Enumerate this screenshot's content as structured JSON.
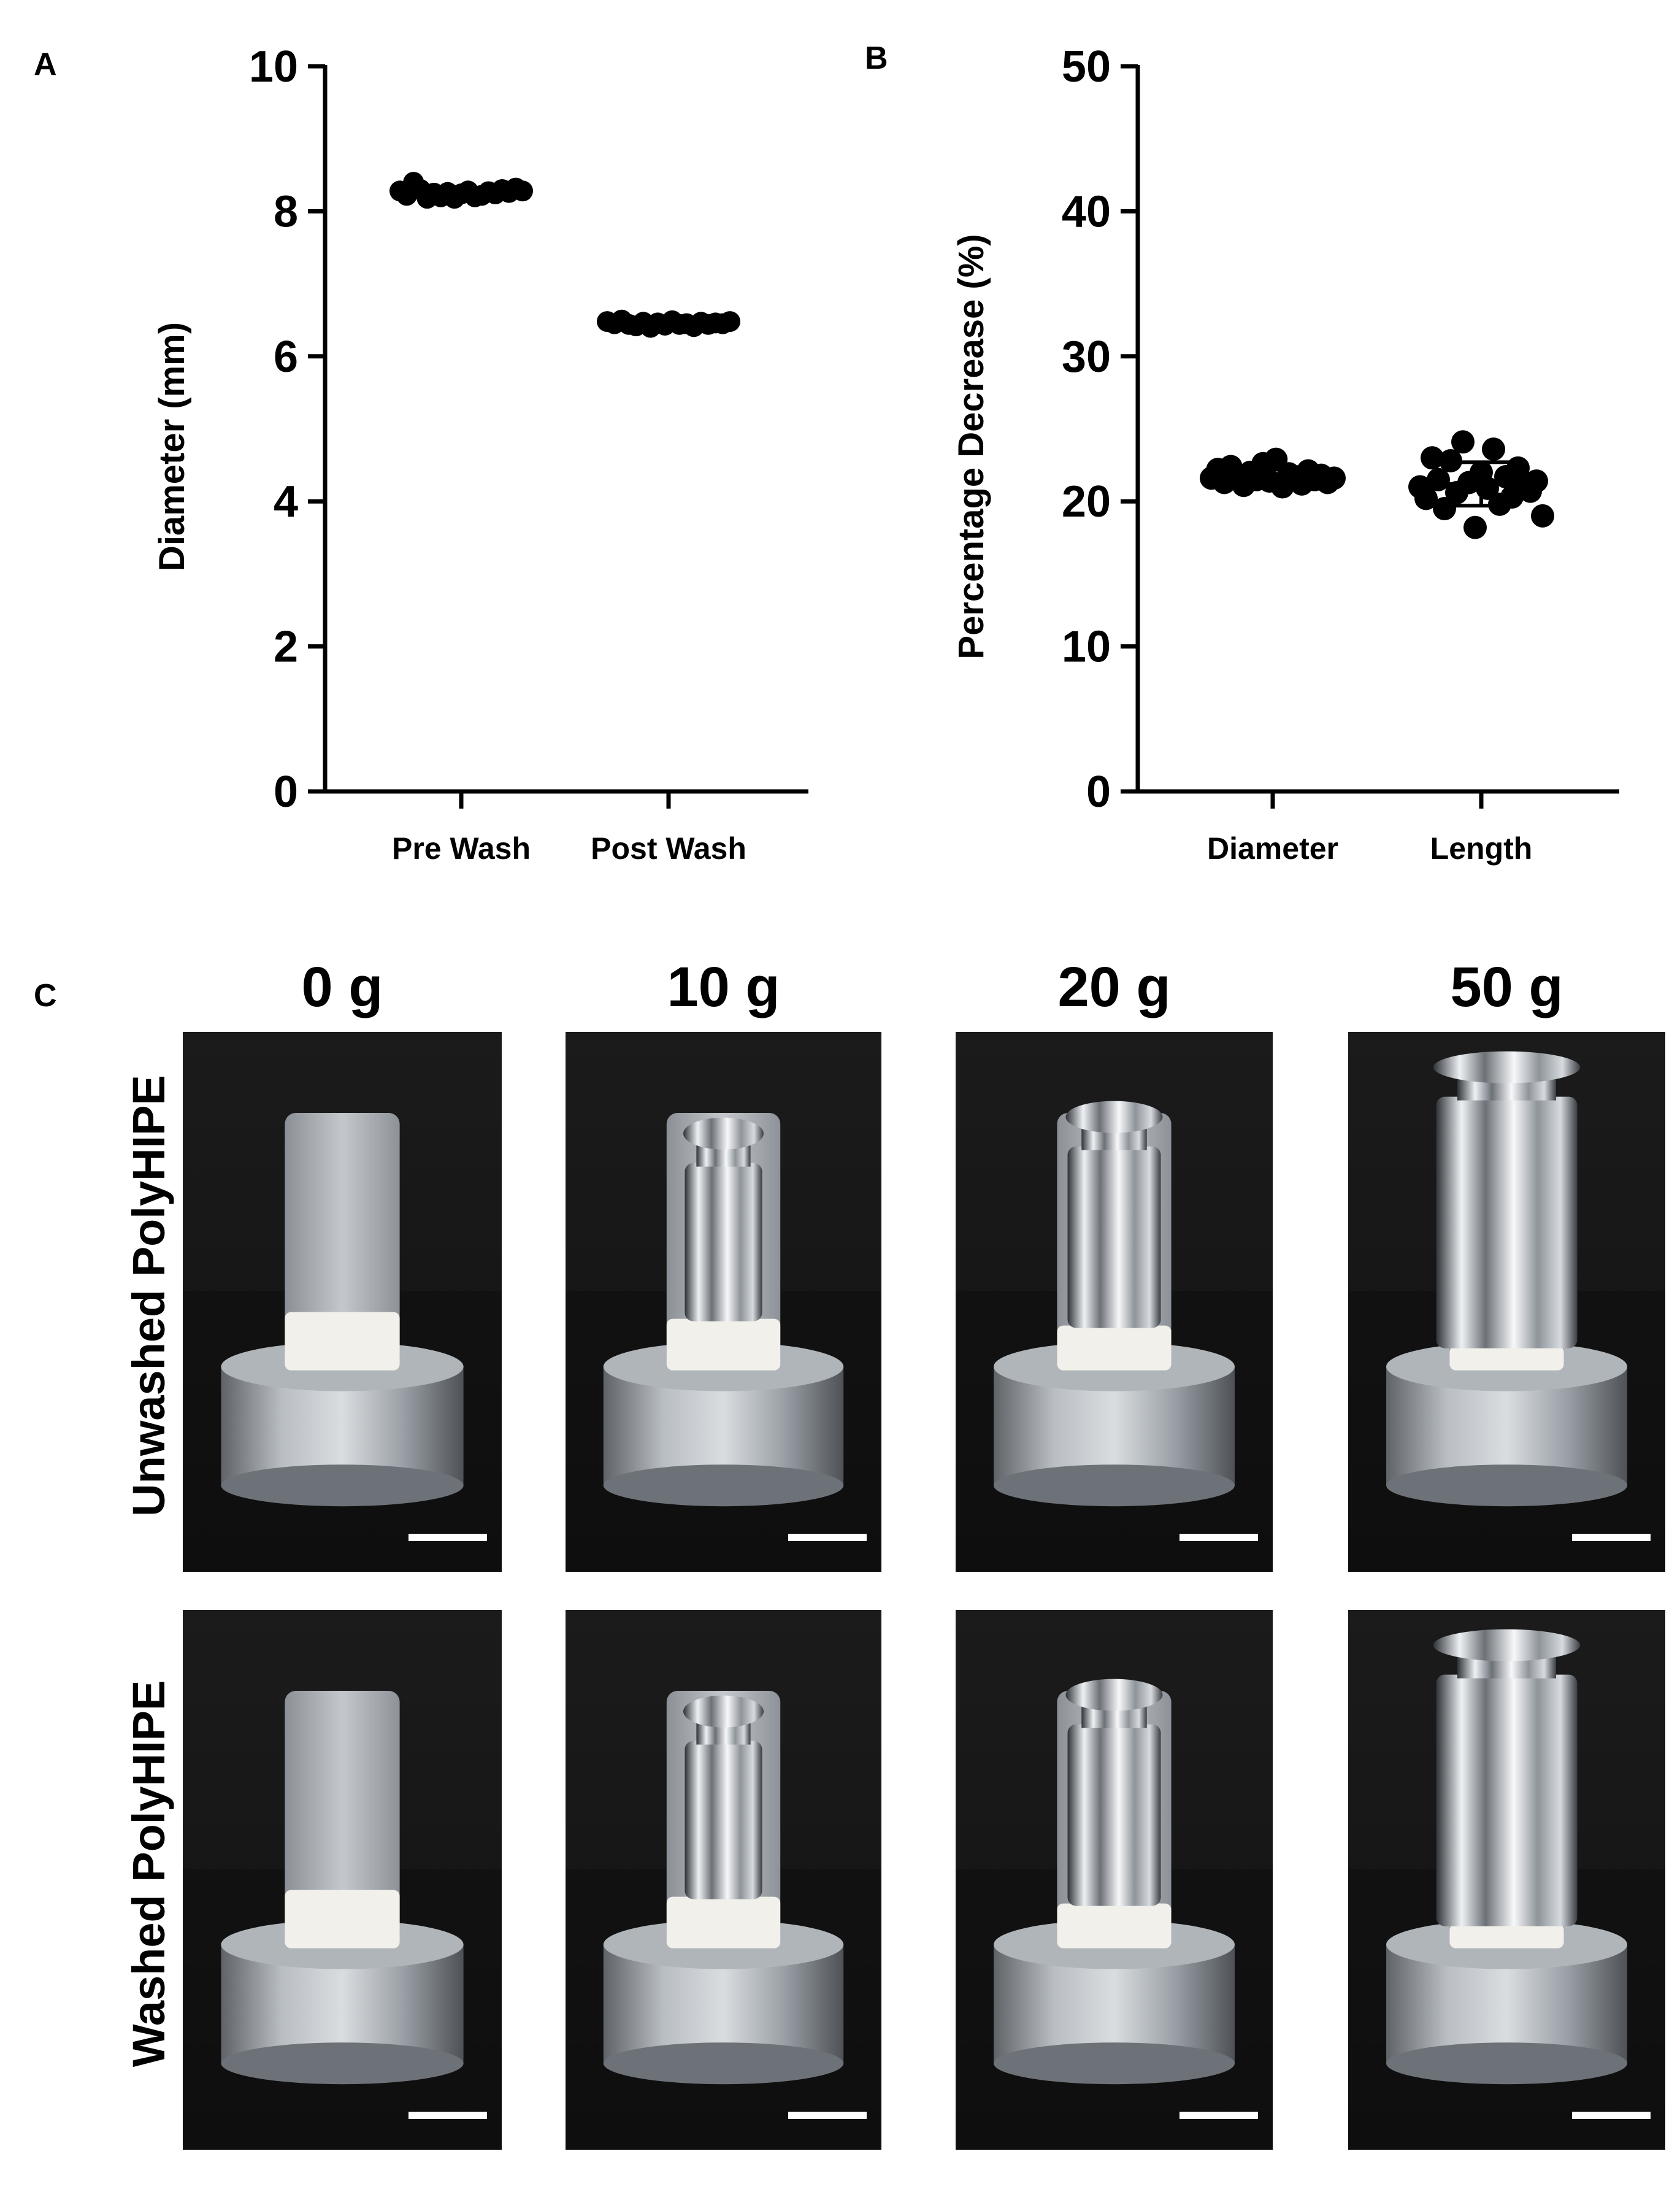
{
  "panel_labels": {
    "a": "A",
    "b": "B",
    "c": "C"
  },
  "chart_data": [
    {
      "type": "scatter",
      "panel": "A",
      "title": "",
      "xlabel": "",
      "ylabel": "Diameter (mm)",
      "categories": [
        "Pre Wash",
        "Post Wash"
      ],
      "ylim": [
        0,
        10
      ],
      "yticks": [
        0,
        2,
        4,
        6,
        8,
        10
      ],
      "grid": false,
      "series": [
        {
          "category": "Pre Wash",
          "values": [
            8.28,
            8.22,
            8.4,
            8.3,
            8.18,
            8.25,
            8.2,
            8.26,
            8.18,
            8.24,
            8.28,
            8.2,
            8.22,
            8.27,
            8.24,
            8.3,
            8.26,
            8.32,
            8.28
          ]
        },
        {
          "category": "Post Wash",
          "values": [
            6.48,
            6.45,
            6.5,
            6.44,
            6.42,
            6.47,
            6.4,
            6.46,
            6.43,
            6.49,
            6.44,
            6.45,
            6.41,
            6.47,
            6.44,
            6.46,
            6.45,
            6.48
          ]
        }
      ]
    },
    {
      "type": "scatter",
      "panel": "B",
      "title": "",
      "xlabel": "",
      "ylabel": "Percentage Decrease (%)",
      "categories": [
        "Diameter",
        "Length"
      ],
      "ylim": [
        0,
        50
      ],
      "yticks": [
        0,
        10,
        20,
        30,
        40,
        50
      ],
      "grid": false,
      "series": [
        {
          "category": "Diameter",
          "values": [
            21.6,
            22.2,
            21.3,
            22.4,
            21.8,
            21.1,
            22.0,
            21.5,
            22.6,
            21.4,
            22.9,
            21.0,
            21.9,
            21.7,
            21.2,
            22.1,
            21.5,
            21.8,
            21.3,
            21.6
          ],
          "mean": 21.7,
          "sd": 0.5
        },
        {
          "category": "Length",
          "values": [
            21.0,
            20.2,
            23.0,
            21.5,
            19.5,
            22.8,
            20.6,
            24.1,
            21.3,
            18.2,
            22.0,
            20.9,
            23.6,
            19.8,
            21.7,
            20.3,
            22.3,
            21.1,
            20.7,
            21.4,
            19.0
          ],
          "mean": 21.2,
          "sd": 1.5
        }
      ]
    }
  ],
  "photo_grid": {
    "columns": [
      "0 g",
      "10 g",
      "20 g",
      "50 g"
    ],
    "rows": [
      "Unwashed PolyHIPE",
      "Washed PolyHIPE"
    ],
    "weights_by_column": [
      0,
      10,
      20,
      50
    ],
    "colors": {
      "background": "#161616",
      "metal": "#a9aeb3",
      "sample": "#f1f0ea",
      "scale_bar": "#ffffff"
    }
  }
}
